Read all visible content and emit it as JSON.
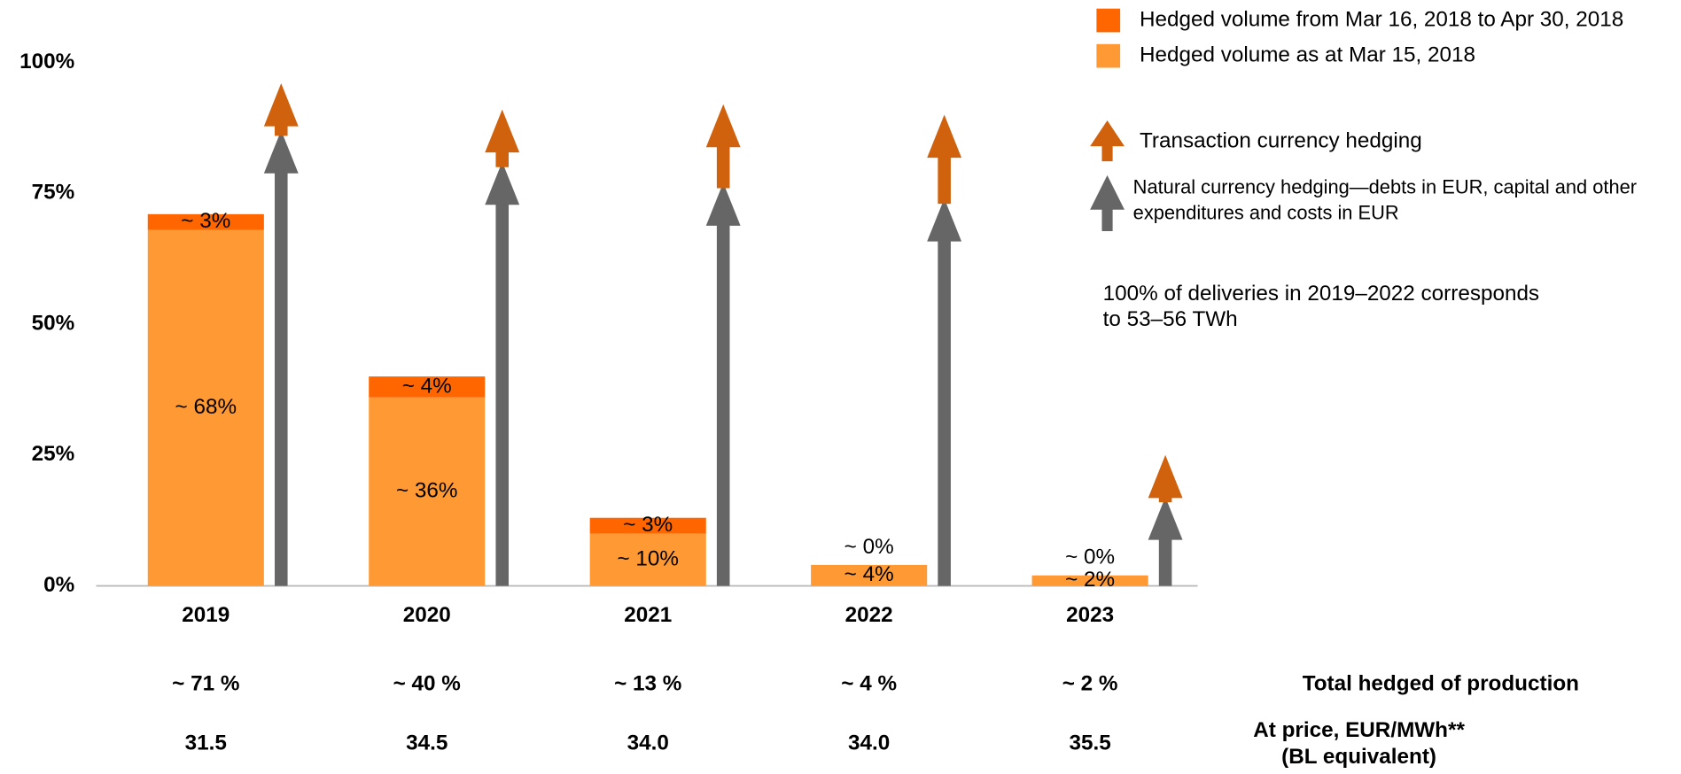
{
  "chart_data": {
    "type": "stacked-bar-arrows",
    "categories": [
      "2019",
      "2020",
      "2021",
      "2022",
      "2023"
    ],
    "ylim": [
      0,
      100
    ],
    "yticks": [
      {
        "value": 0,
        "label": "0%"
      },
      {
        "value": 25,
        "label": "25%"
      },
      {
        "value": 50,
        "label": "50%"
      },
      {
        "value": 75,
        "label": "75%"
      },
      {
        "value": 100,
        "label": "100%"
      }
    ],
    "series": [
      {
        "name": "Hedged volume as at Mar 15, 2018",
        "color": "#ff9933",
        "values": [
          68,
          36,
          10,
          4,
          2
        ],
        "value_labels": [
          "~ 68%",
          "~ 36%",
          "~ 10%",
          "~ 4%",
          "~ 2%"
        ]
      },
      {
        "name": "Hedged volume from Mar 16, 2018 to Apr 30, 2018",
        "color": "#ff6600",
        "values": [
          3,
          4,
          3,
          0,
          0
        ],
        "value_labels": [
          "~ 3%",
          "~ 4%",
          "~ 3%",
          "~ 0%",
          "~ 0%"
        ]
      }
    ],
    "arrows": [
      {
        "name": "Natural currency hedging—debts in EUR, capital and other expenditures and costs in EUR",
        "color": "#666666",
        "values": [
          87,
          81,
          77,
          74,
          17
        ]
      },
      {
        "name": "Transaction currency hedging",
        "color": "#d0620e",
        "values": [
          9,
          10,
          15,
          16,
          8
        ]
      }
    ],
    "note": [
      "100% of deliveries in 2019–2022 corresponds",
      "to 53–56 TWh"
    ],
    "totals": {
      "label": "Total hedged of production",
      "color": "#f05a1a",
      "values": [
        71,
        40,
        13,
        4,
        2
      ],
      "value_labels": [
        "~ 71 %",
        "~ 40 %",
        "~ 13 %",
        "~ 4 %",
        "~ 2 %"
      ]
    },
    "prices": {
      "label": [
        "At price, EUR/MWh**",
        "(BL equivalent)"
      ],
      "values": [
        31.5,
        34.5,
        34,
        34,
        35.5
      ],
      "value_labels": [
        "31.5",
        "34.5",
        "34.0",
        "34.0",
        "35.5"
      ]
    }
  }
}
